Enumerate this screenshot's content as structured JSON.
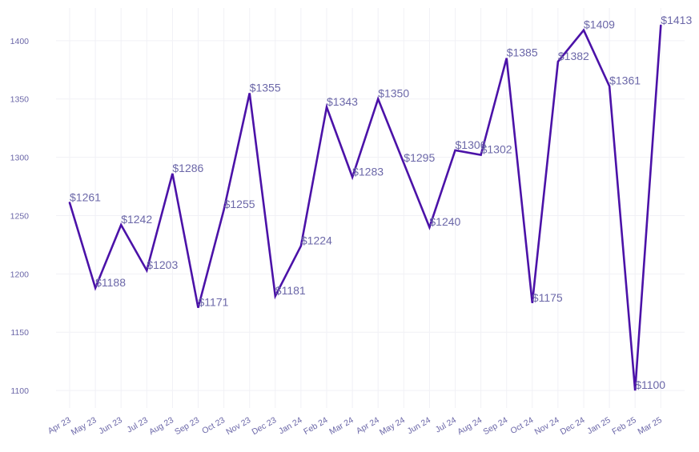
{
  "chart_data": {
    "type": "line",
    "title": "",
    "xlabel": "",
    "ylabel": "",
    "categories": [
      "Apr 23",
      "May 23",
      "Jun 23",
      "Jul 23",
      "Aug 23",
      "Sep 23",
      "Oct 23",
      "Nov 23",
      "Dec 23",
      "Jan 24",
      "Feb 24",
      "Mar 24",
      "Apr 24",
      "May 24",
      "Jun 24",
      "Jul 24",
      "Aug 24",
      "Sep 24",
      "Oct 24",
      "Nov 24",
      "Dec 24",
      "Jan 25",
      "Feb 25",
      "Mar 25"
    ],
    "series": [
      {
        "values": [
          1261,
          1188,
          1242,
          1203,
          1286,
          1171,
          1255,
          1355,
          1181,
          1224,
          1343,
          1283,
          1350,
          1295,
          1240,
          1306,
          1302,
          1385,
          1175,
          1382,
          1409,
          1361,
          1100,
          1413
        ],
        "labels": [
          "$1261",
          "$1188",
          "$1242",
          "$1203",
          "$1286",
          "$1171",
          "$1255",
          "$1355",
          "$1181",
          "$1224",
          "$1343",
          "$1283",
          "$1350",
          "$1295",
          "$1240",
          "$1306",
          "$1302",
          "$1385",
          "$1175",
          "$1382",
          "$1409",
          "$1361",
          "$1100",
          "$1413"
        ],
        "color": "#4b12a8"
      }
    ],
    "ylim": [
      1085,
      1428
    ],
    "yticks": [
      1100,
      1150,
      1200,
      1250,
      1300,
      1350,
      1400
    ],
    "grid": true,
    "legend": "none"
  }
}
